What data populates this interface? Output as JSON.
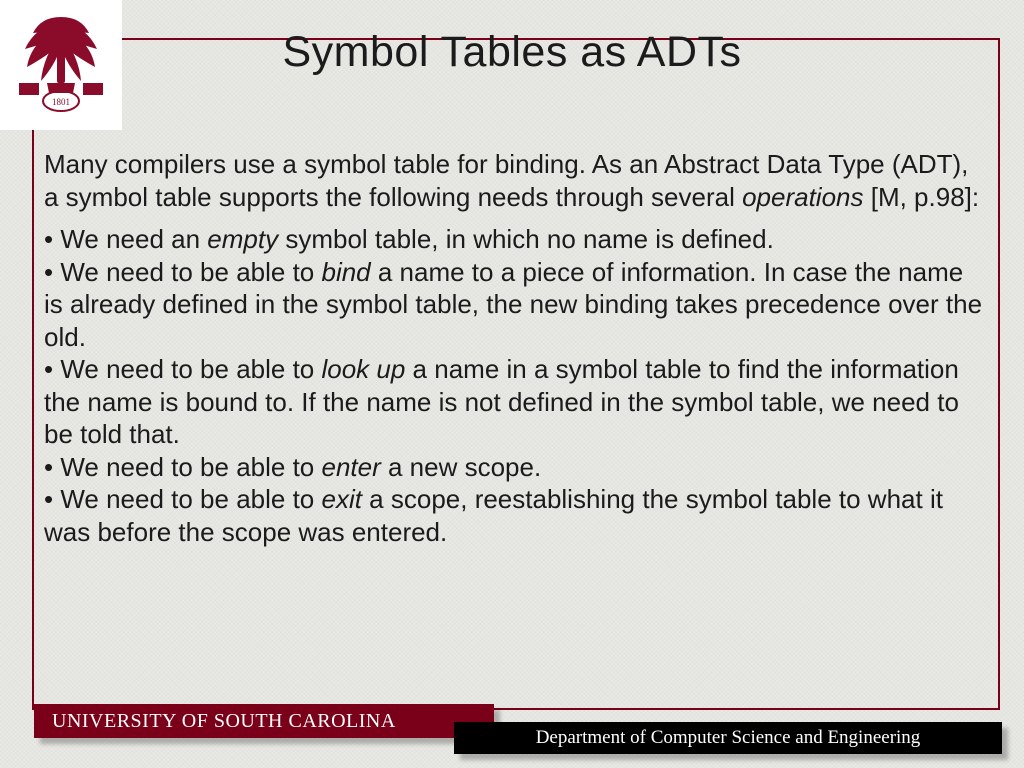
{
  "colors": {
    "garnet": "#7a0019",
    "black": "#000000",
    "white": "#ffffff",
    "bg": "#e8e8e4",
    "text": "#1b1b1b"
  },
  "logo": {
    "name": "university-seal",
    "year": "1801"
  },
  "title": "Symbol Tables as ADTs",
  "intro": {
    "pre": "Many compilers use a symbol table for binding. As an Abstract Data Type (ADT), a symbol table supports the following needs through several ",
    "em": "operations",
    "post": " [M, p.98]:"
  },
  "bullets": [
    {
      "pre": "• We need an ",
      "em": "empty",
      "post": " symbol table, in which no name is defined."
    },
    {
      "pre": "• We need to be able to ",
      "em": "bind",
      "post": " a name to a piece of information. In case the name is already defined in the symbol table, the new binding takes precedence over the old."
    },
    {
      "pre": "• We need to be able to ",
      "em": "look up",
      "post": " a name in a symbol table to find the information the name is bound to. If the name is not defined in the symbol table, we need to be told that."
    },
    {
      "pre": "• We need to be able to ",
      "em": "enter",
      "post": " a new scope."
    },
    {
      "pre": "• We need to be able to ",
      "em": "exit",
      "post": " a scope, reestablishing the symbol table to what it was before the scope was entered."
    }
  ],
  "footer": {
    "university": "UNIVERSITY OF SOUTH CAROLINA",
    "department": "Department of Computer Science and Engineering"
  }
}
